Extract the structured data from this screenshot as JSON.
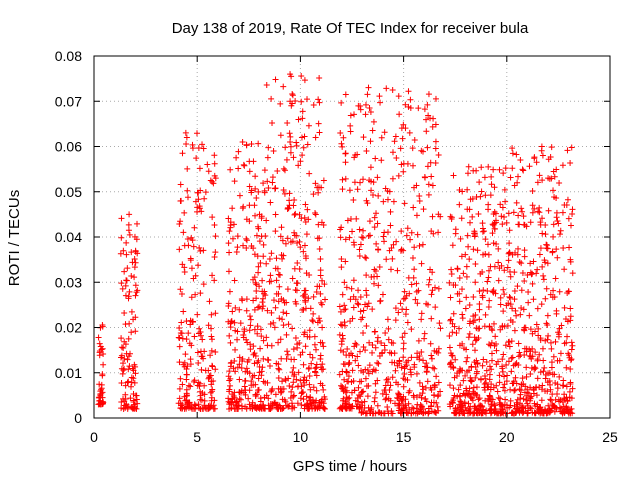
{
  "chart_data": {
    "type": "scatter",
    "title": "Day 138 of 2019, Rate Of TEC Index for receiver bula",
    "xlabel": "GPS time / hours",
    "ylabel": "ROTI / TECUs",
    "xlim": [
      0,
      25
    ],
    "ylim": [
      0,
      0.08
    ],
    "xticks": [
      0,
      5,
      10,
      15,
      20,
      25
    ],
    "yticks": [
      0,
      0.01,
      0.02,
      0.03,
      0.04,
      0.05,
      0.06,
      0.07,
      0.08
    ],
    "grid": true,
    "marker": "+",
    "marker_color": "#ff0000",
    "series": [
      {
        "name": "ROTI",
        "clusters": [
          {
            "x0": 0.2,
            "x1": 0.45,
            "ymin": 0.003,
            "ymax": 0.022,
            "n": 40
          },
          {
            "x0": 1.3,
            "x1": 2.1,
            "ymin": 0.002,
            "ymax": 0.045,
            "n": 110
          },
          {
            "x0": 4.1,
            "x1": 5.9,
            "ymin": 0.002,
            "ymax": 0.063,
            "n": 220
          },
          {
            "x0": 6.5,
            "x1": 8.3,
            "ymin": 0.002,
            "ymax": 0.061,
            "n": 260
          },
          {
            "x0": 8.3,
            "x1": 11.2,
            "ymin": 0.002,
            "ymax": 0.076,
            "n": 380
          },
          {
            "x0": 11.9,
            "x1": 12.9,
            "ymin": 0.002,
            "ymax": 0.072,
            "n": 160
          },
          {
            "x0": 12.9,
            "x1": 16.8,
            "ymin": 0.001,
            "ymax": 0.073,
            "n": 460
          },
          {
            "x0": 17.2,
            "x1": 20.0,
            "ymin": 0.001,
            "ymax": 0.056,
            "n": 420
          },
          {
            "x0": 20.0,
            "x1": 23.2,
            "ymin": 0.001,
            "ymax": 0.06,
            "n": 460
          }
        ],
        "spikes": [
          {
            "x": 9.5,
            "y": 0.076
          },
          {
            "x": 9.55,
            "y": 0.0755
          },
          {
            "x": 9.5,
            "y": 0.07
          },
          {
            "x": 9.6,
            "y": 0.0695
          },
          {
            "x": 12.2,
            "y": 0.0715
          },
          {
            "x": 13.3,
            "y": 0.073
          },
          {
            "x": 13.35,
            "y": 0.0685
          },
          {
            "x": 15.35,
            "y": 0.0685
          },
          {
            "x": 15.3,
            "y": 0.063
          },
          {
            "x": 4.45,
            "y": 0.063
          },
          {
            "x": 4.5,
            "y": 0.062
          },
          {
            "x": 7.2,
            "y": 0.061
          },
          {
            "x": 9.5,
            "y": 0.061
          },
          {
            "x": 8.7,
            "y": 0.059
          },
          {
            "x": 13.2,
            "y": 0.059
          },
          {
            "x": 21.7,
            "y": 0.06
          },
          {
            "x": 21.75,
            "y": 0.058
          },
          {
            "x": 19.1,
            "y": 0.0555
          },
          {
            "x": 5.85,
            "y": 0.0535
          },
          {
            "x": 5.9,
            "y": 0.053
          },
          {
            "x": 20.5,
            "y": 0.052
          },
          {
            "x": 10.9,
            "y": 0.051
          },
          {
            "x": 13.2,
            "y": 0.048
          },
          {
            "x": 13.25,
            "y": 0.0475
          },
          {
            "x": 16.4,
            "y": 0.0445
          },
          {
            "x": 1.7,
            "y": 0.045
          },
          {
            "x": 22.0,
            "y": 0.053
          }
        ]
      }
    ]
  }
}
